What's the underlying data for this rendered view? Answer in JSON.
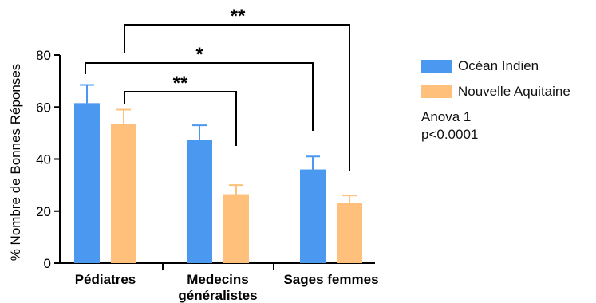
{
  "chart_data": {
    "type": "bar",
    "categories": [
      [
        "Pédiatres"
      ],
      [
        "Medecins",
        "généralistes"
      ],
      [
        "Sages femmes"
      ]
    ],
    "series": [
      {
        "name": "Océan Indien",
        "color": "#4a98f0",
        "values": [
          61.5,
          47.5,
          36
        ],
        "errors": [
          7,
          5.5,
          5
        ]
      },
      {
        "name": "Nouvelle Aquitaine",
        "color": "#fec07a",
        "values": [
          53.5,
          26.5,
          23
        ],
        "errors": [
          5.5,
          3.5,
          3
        ]
      }
    ],
    "ylabel": "% Nombre de Bonnes Réponses",
    "ylim": [
      0,
      80
    ],
    "yticks": [
      0,
      20,
      40,
      60,
      80
    ],
    "grid": false,
    "legend_placement": "right",
    "annotations": [
      {
        "label": "**",
        "from": {
          "cat": 0,
          "series": 0
        },
        "to": {
          "cat": 2,
          "series": 1
        }
      },
      {
        "label": "*",
        "from": {
          "cat": 0,
          "series": 0
        },
        "to": {
          "cat": 2,
          "series": 0
        }
      },
      {
        "label": "**",
        "from": {
          "cat": 0,
          "series": 1
        },
        "to": {
          "cat": 1,
          "series": 1
        }
      }
    ],
    "stats_text": [
      "Anova 1",
      "p<0.0001"
    ]
  }
}
